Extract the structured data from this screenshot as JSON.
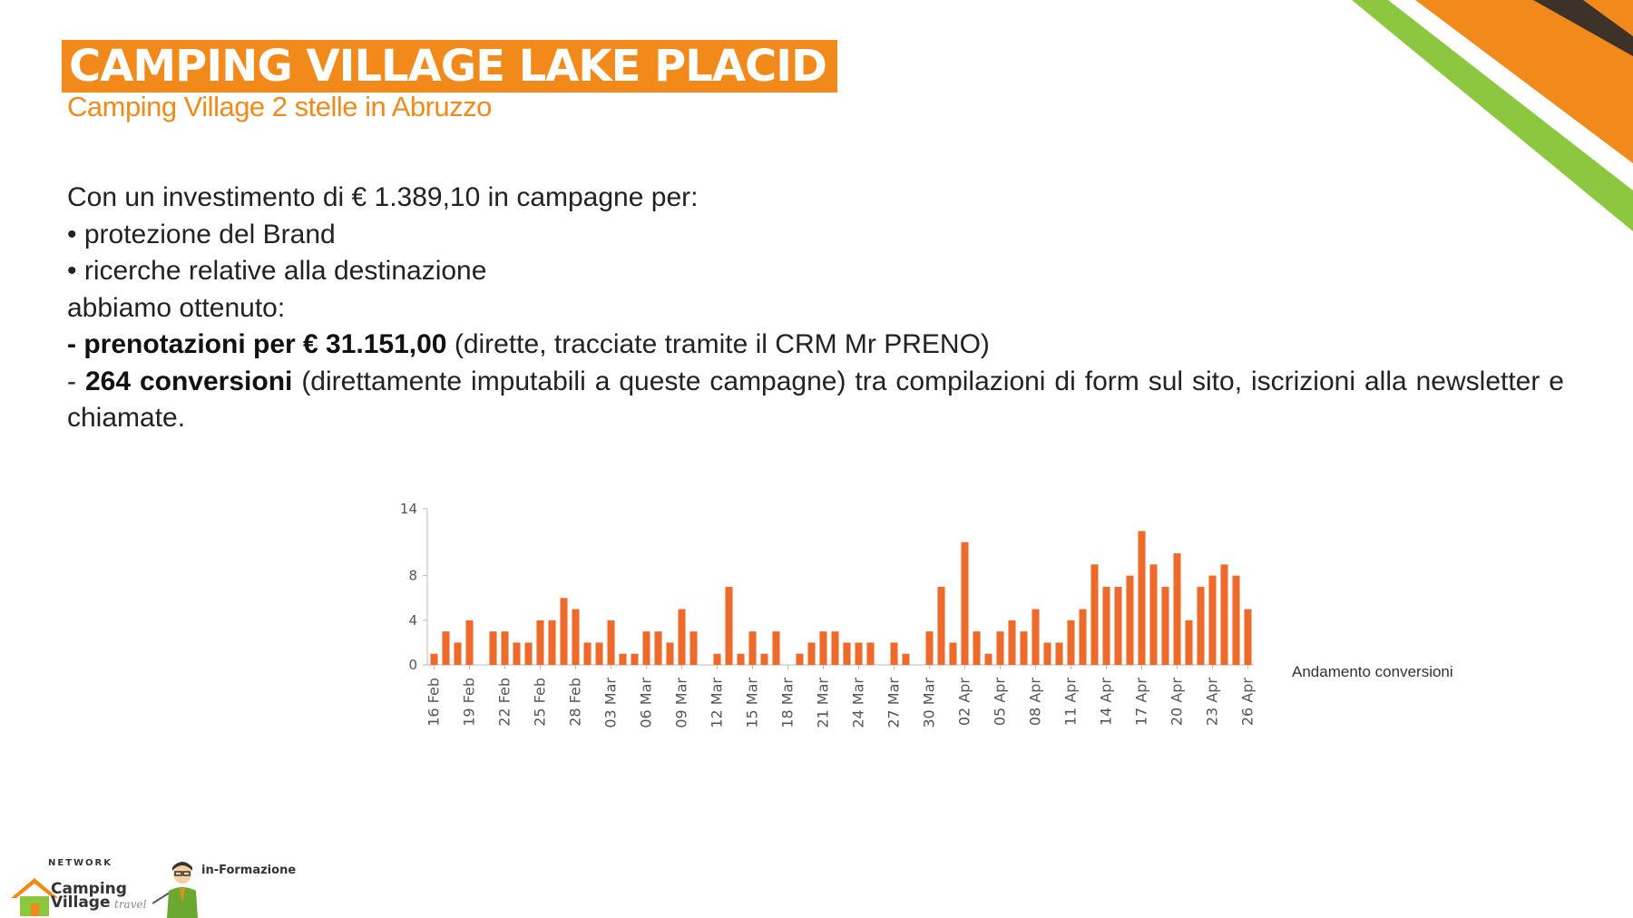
{
  "header": {
    "title": "CAMPING VILLAGE LAKE PLACID",
    "subtitle": "Camping Village 2 stelle in Abruzzo"
  },
  "body": {
    "line1": "Con un investimento di € 1.389,10 in campagne per:",
    "bullet1": "• protezione del Brand",
    "bullet2": "• ricerche relative alla destinazione",
    "line2": "abbiamo ottenuto:",
    "line3_bold": "- prenotazioni per € 31.151,00",
    "line3_rest": " (dirette, tracciate tramite il CRM Mr PRENO)",
    "line4_dash": "- ",
    "line4_bold": "264 conversioni",
    "line4_rest": " (direttamente imputabili a queste campagne) tra compilazioni di form sul sito, iscrizioni alla newsletter e chiamate."
  },
  "logo": {
    "network": "NETWORK",
    "line1": "Camping",
    "line2": "Village",
    "script": "travel",
    "partner": "in-Formazione"
  },
  "colors": {
    "brand_orange": "#f28a1b",
    "bar_orange": "#ee6a2a",
    "deco_green": "#8dc63f",
    "deco_dark": "#3d3229"
  },
  "chart_data": {
    "type": "bar",
    "legend": "Andamento conversioni",
    "yticks": [
      0,
      4,
      8,
      14
    ],
    "ylim": [
      0,
      14
    ],
    "xtick_labels": [
      "16 Feb",
      "19 Feb",
      "22 Feb",
      "25 Feb",
      "28 Feb",
      "03 Mar",
      "06 Mar",
      "09 Mar",
      "12 Mar",
      "15 Mar",
      "18 Mar",
      "21 Mar",
      "24 Mar",
      "27 Mar",
      "30 Mar",
      "02 Apr",
      "05 Apr",
      "08 Apr",
      "11 Apr",
      "14 Apr",
      "17 Apr",
      "20 Apr",
      "23 Apr",
      "26 Apr"
    ],
    "x": [
      "16 Feb",
      "17 Feb",
      "18 Feb",
      "19 Feb",
      "20 Feb",
      "21 Feb",
      "22 Feb",
      "23 Feb",
      "24 Feb",
      "25 Feb",
      "26 Feb",
      "27 Feb",
      "28 Feb",
      "01 Mar",
      "02 Mar",
      "03 Mar",
      "04 Mar",
      "05 Mar",
      "06 Mar",
      "07 Mar",
      "08 Mar",
      "09 Mar",
      "10 Mar",
      "11 Mar",
      "12 Mar",
      "13 Mar",
      "14 Mar",
      "15 Mar",
      "16 Mar",
      "17 Mar",
      "18 Mar",
      "19 Mar",
      "20 Mar",
      "21 Mar",
      "22 Mar",
      "23 Mar",
      "24 Mar",
      "25 Mar",
      "26 Mar",
      "27 Mar",
      "28 Mar",
      "29 Mar",
      "30 Mar",
      "31 Mar",
      "01 Apr",
      "02 Apr",
      "03 Apr",
      "04 Apr",
      "05 Apr",
      "06 Apr",
      "07 Apr",
      "08 Apr",
      "09 Apr",
      "10 Apr",
      "11 Apr",
      "12 Apr",
      "13 Apr",
      "14 Apr",
      "15 Apr",
      "16 Apr",
      "17 Apr",
      "18 Apr",
      "19 Apr",
      "20 Apr",
      "21 Apr",
      "22 Apr",
      "23 Apr",
      "24 Apr",
      "25 Apr",
      "26 Apr"
    ],
    "values": [
      1,
      3,
      2,
      4,
      0,
      3,
      3,
      2,
      2,
      4,
      4,
      6,
      5,
      2,
      2,
      4,
      1,
      1,
      3,
      3,
      2,
      5,
      3,
      0,
      1,
      7,
      1,
      3,
      1,
      3,
      0,
      1,
      2,
      3,
      3,
      2,
      2,
      2,
      0,
      2,
      1,
      0,
      3,
      7,
      2,
      11,
      3,
      1,
      3,
      4,
      3,
      5,
      2,
      2,
      4,
      5,
      9,
      7,
      7,
      8,
      12,
      9,
      7,
      10,
      4,
      7,
      8,
      9,
      8,
      5
    ]
  }
}
